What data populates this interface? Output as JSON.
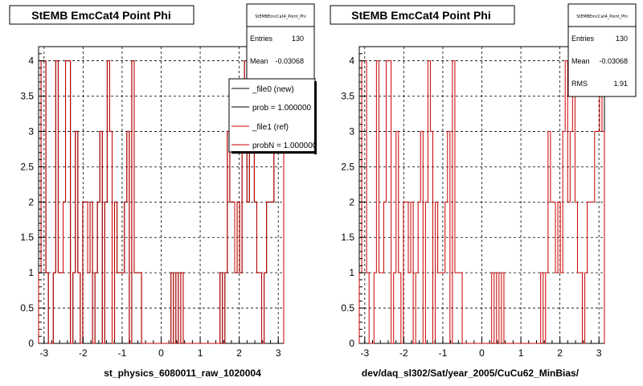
{
  "footer_text": "",
  "chart_data": [
    {
      "type": "histogram",
      "title": "StEMB EmcCat4 Point Phi",
      "xlabel": "st_physics_6080011_raw_1020004",
      "ylabel": "",
      "xlim": [
        -3.14,
        3.14
      ],
      "ylim": [
        0,
        4.2
      ],
      "xticks": [
        -3,
        -2,
        -1,
        0,
        1,
        2,
        3
      ],
      "yticks": [
        0,
        0.5,
        1,
        1.5,
        2,
        2.5,
        3,
        3.5,
        4
      ],
      "ytick_labels": [
        "0",
        "0.5",
        "1",
        "1.5",
        "2",
        "2.5",
        "3",
        "3.5",
        "4"
      ],
      "xtick_labels": [
        "-3",
        "-2",
        "-1",
        "0",
        "1",
        "2",
        "3"
      ],
      "grid": true,
      "bins": 100,
      "bin_range": [
        -3.14,
        3.14
      ],
      "series": [
        {
          "name": "_file0 (new)",
          "color": "#000000",
          "values": [
            1,
            4,
            4,
            1,
            0,
            0,
            1,
            4,
            1,
            1,
            2,
            4,
            4,
            0,
            1,
            3,
            1,
            0,
            2,
            2,
            1,
            2,
            0,
            1,
            2,
            3,
            0,
            2,
            4,
            3,
            0,
            2,
            1,
            1,
            1,
            2,
            3,
            0,
            4,
            1,
            1,
            1,
            0,
            0,
            0,
            0,
            0,
            0,
            0,
            0,
            0,
            0,
            0,
            0,
            1,
            0,
            1,
            0,
            1,
            0,
            0,
            0,
            0,
            0,
            0,
            0,
            0,
            0,
            0,
            0,
            0,
            0,
            0,
            0,
            1,
            0,
            1,
            3,
            2,
            2,
            1,
            2,
            1,
            3,
            4,
            2,
            3,
            4,
            2,
            1,
            1,
            0,
            1,
            2,
            2,
            2,
            3,
            3,
            4,
            3
          ]
        },
        {
          "name": "_file1 (ref)",
          "color": "#cc0000",
          "values": [
            1,
            4,
            4,
            1,
            0,
            0,
            1,
            4,
            1,
            1,
            2,
            4,
            4,
            0,
            1,
            3,
            1,
            0,
            2,
            2,
            1,
            2,
            0,
            1,
            2,
            3,
            0,
            2,
            4,
            3,
            0,
            2,
            1,
            1,
            1,
            2,
            3,
            0,
            4,
            1,
            1,
            1,
            0,
            0,
            0,
            0,
            0,
            0,
            0,
            0,
            0,
            0,
            0,
            0,
            1,
            0,
            1,
            0,
            1,
            0,
            0,
            0,
            0,
            0,
            0,
            0,
            0,
            0,
            0,
            0,
            0,
            0,
            0,
            0,
            1,
            0,
            1,
            3,
            2,
            2,
            1,
            2,
            1,
            3,
            4,
            2,
            3,
            4,
            2,
            1,
            1,
            0,
            1,
            2,
            2,
            2,
            3,
            3,
            4,
            3
          ]
        }
      ],
      "stats": {
        "name": "StEMBEmcCat4_Point_Phi",
        "entries_label": "Entries",
        "entries": "130",
        "mean_label": "Mean",
        "mean": "-0.03068"
      },
      "legend": {
        "position": "top-right",
        "entries": [
          {
            "label": "_file0 (new)",
            "color": "#000000"
          },
          {
            "label": "prob = 1.000000",
            "color": "#000000"
          },
          {
            "label": "_file1 (ref)",
            "color": "#cc0000"
          },
          {
            "label": "probN = 1.000000",
            "color": "#cc0000"
          }
        ]
      }
    },
    {
      "type": "histogram",
      "title": "StEMB EmcCat4 Point Phi",
      "xlabel": "dev/daq_sl302/Sat/year_2005/CuCu62_MinBias/",
      "ylabel": "",
      "xlim": [
        -3.14,
        3.14
      ],
      "ylim": [
        0,
        4.2
      ],
      "xticks": [
        -3,
        -2,
        -1,
        0,
        1,
        2,
        3
      ],
      "yticks": [
        0,
        0.5,
        1,
        1.5,
        2,
        2.5,
        3,
        3.5,
        4
      ],
      "ytick_labels": [
        "0",
        "0.5",
        "1",
        "1.5",
        "2",
        "2.5",
        "3",
        "3.5",
        "4"
      ],
      "xtick_labels": [
        "-3",
        "-2",
        "-1",
        "0",
        "1",
        "2",
        "3"
      ],
      "grid": true,
      "bins": 100,
      "bin_range": [
        -3.14,
        3.14
      ],
      "series": [
        {
          "name": "",
          "color": "#cc0000",
          "values": [
            1,
            4,
            4,
            1,
            0,
            0,
            1,
            4,
            1,
            1,
            2,
            4,
            4,
            0,
            1,
            3,
            1,
            0,
            2,
            2,
            1,
            2,
            0,
            1,
            2,
            3,
            0,
            2,
            4,
            3,
            0,
            2,
            1,
            1,
            1,
            2,
            3,
            0,
            4,
            1,
            1,
            1,
            0,
            0,
            0,
            0,
            0,
            0,
            0,
            0,
            0,
            0,
            0,
            0,
            1,
            0,
            1,
            0,
            1,
            0,
            0,
            0,
            0,
            0,
            0,
            0,
            0,
            0,
            0,
            0,
            0,
            0,
            0,
            0,
            1,
            0,
            1,
            3,
            2,
            2,
            1,
            2,
            1,
            3,
            4,
            2,
            3,
            4,
            2,
            1,
            1,
            0,
            1,
            2,
            2,
            2,
            3,
            3,
            4,
            3
          ]
        }
      ],
      "stats": {
        "name": "StEMBEmcCat4_Point_Phi",
        "entries_label": "Entries",
        "entries": "130",
        "mean_label": "Mean",
        "mean": "-0.03068",
        "rms_label": "RMS",
        "rms": "1.91"
      }
    }
  ]
}
